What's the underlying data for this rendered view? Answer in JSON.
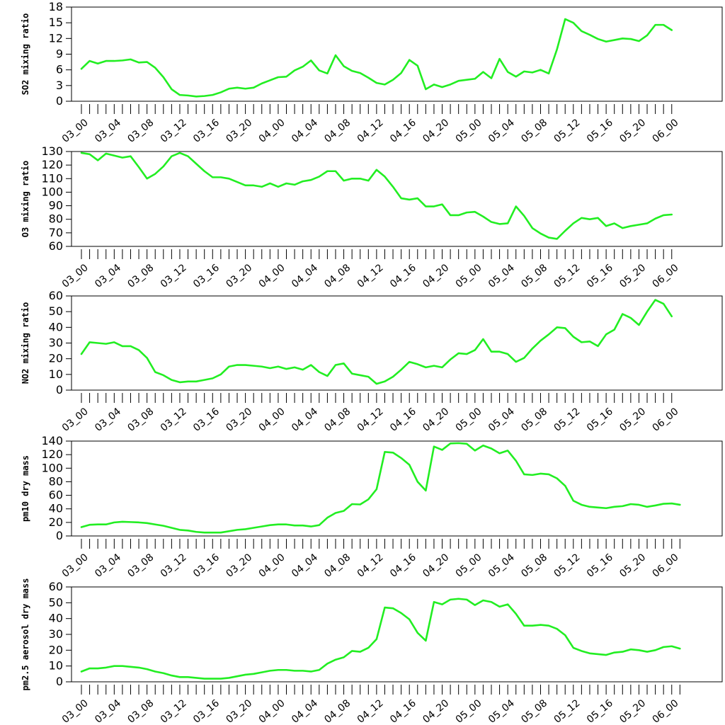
{
  "chart_data": [
    {
      "type": "line",
      "ylabel": "SO2 mixing ratio",
      "ylim": [
        0,
        18
      ],
      "yticks": [
        0,
        3,
        6,
        9,
        12,
        15,
        18
      ],
      "x_tick_labels": [
        "03_00",
        "03_04",
        "03_08",
        "03_12",
        "03_16",
        "03_20",
        "04_00",
        "04_04",
        "04_08",
        "04_12",
        "04_16",
        "04_20",
        "05_00",
        "05_04",
        "05_08",
        "05_12",
        "05_16",
        "05_20",
        "06_00"
      ],
      "line_color": "#22ee22",
      "values": [
        6.2,
        7.7,
        7.2,
        7.7,
        7.7,
        7.8,
        8.0,
        7.4,
        7.5,
        6.4,
        4.6,
        2.3,
        1.2,
        1.1,
        0.9,
        1.0,
        1.2,
        1.7,
        2.4,
        2.6,
        2.4,
        2.6,
        3.4,
        4.0,
        4.6,
        4.7,
        5.9,
        6.6,
        7.8,
        5.9,
        5.3,
        8.8,
        6.7,
        5.8,
        5.4,
        4.5,
        3.5,
        3.2,
        4.1,
        5.4,
        7.9,
        6.8,
        2.3,
        3.2,
        2.7,
        3.2,
        3.9,
        4.1,
        4.3,
        5.6,
        4.4,
        8.1,
        5.6,
        4.7,
        5.7,
        5.5,
        6.0,
        5.3,
        9.9,
        15.7,
        15.0,
        13.4,
        12.7,
        11.9,
        11.4,
        11.7,
        12.0,
        11.9,
        11.5,
        12.6,
        14.6,
        14.6,
        13.6
      ]
    },
    {
      "type": "line",
      "ylabel": "O3 mixing ratio",
      "ylim": [
        60,
        130
      ],
      "yticks": [
        60,
        70,
        80,
        90,
        100,
        110,
        120,
        130
      ],
      "x_tick_labels": [
        "03_00",
        "03_04",
        "03_08",
        "03_12",
        "03_16",
        "03_20",
        "04_00",
        "04_04",
        "04_08",
        "04_12",
        "04_16",
        "04_20",
        "05_00",
        "05_04",
        "05_08",
        "05_12",
        "05_16",
        "05_20",
        "06_00"
      ],
      "line_color": "#22ee22",
      "values": [
        129,
        128,
        123.5,
        128.5,
        127,
        125.5,
        126.5,
        118.5,
        110,
        113.5,
        119,
        126.5,
        129,
        126.5,
        121,
        115.5,
        111,
        111,
        110,
        107.5,
        105,
        105,
        104,
        106.5,
        104,
        106.5,
        105.5,
        108,
        109,
        111.5,
        115.5,
        115.5,
        108.5,
        110,
        110,
        108.5,
        116.5,
        111.5,
        104,
        95.5,
        94.5,
        95.5,
        89.5,
        89.5,
        91,
        83,
        83,
        85,
        85.5,
        82,
        78,
        76.5,
        77,
        89.5,
        82.5,
        73.5,
        69.5,
        66.5,
        65.5,
        71.5,
        77,
        81,
        80,
        81,
        75,
        77,
        73.5,
        75,
        76,
        77,
        80.5,
        83,
        83.5
      ]
    },
    {
      "type": "line",
      "ylabel": "NO2 mixing ratio",
      "ylim": [
        0,
        60
      ],
      "yticks": [
        0,
        10,
        20,
        30,
        40,
        50,
        60
      ],
      "x_tick_labels": [
        "03_00",
        "03_04",
        "03_08",
        "03_12",
        "03_16",
        "03_20",
        "04_00",
        "04_04",
        "04_08",
        "04_12",
        "04_16",
        "04_20",
        "05_00",
        "05_04",
        "05_08",
        "05_12",
        "05_16",
        "05_20",
        "06_00"
      ],
      "line_color": "#22ee22",
      "values": [
        23,
        30.5,
        30,
        29.5,
        30.5,
        28,
        28,
        25.5,
        20.5,
        11.5,
        9.5,
        6.5,
        5,
        5.5,
        5.5,
        6.5,
        7.5,
        10,
        15,
        16,
        16,
        15.5,
        15,
        14,
        15,
        13.5,
        14.5,
        13,
        16,
        11.5,
        9,
        16,
        17,
        10.5,
        9.5,
        8.5,
        4,
        5.5,
        8.5,
        13,
        18,
        16.5,
        14.5,
        15.5,
        14.5,
        19.5,
        23.5,
        23,
        25.5,
        32.5,
        24.5,
        24.5,
        23,
        18,
        20.5,
        26.5,
        31.5,
        35.5,
        40,
        39.5,
        34,
        30.5,
        31,
        28,
        35.5,
        38.5,
        48.5,
        46,
        41.5,
        50,
        57.5,
        55,
        47
      ]
    },
    {
      "type": "line",
      "ylabel": "pm10 dry mass",
      "ylim": [
        0,
        140
      ],
      "yticks": [
        0,
        20,
        40,
        60,
        80,
        100,
        120,
        140
      ],
      "x_tick_labels": [
        "03_00",
        "03_04",
        "03_08",
        "03_12",
        "03_16",
        "03_20",
        "04_00",
        "04_04",
        "04_08",
        "04_12",
        "04_16",
        "04_20",
        "05_00",
        "05_04",
        "05_08",
        "05_12",
        "05_16",
        "05_20",
        "06_00"
      ],
      "line_color": "#22ee22",
      "values": [
        13,
        16.5,
        17,
        17,
        20,
        21,
        20.5,
        20,
        19,
        17,
        15,
        12,
        9,
        8,
        6,
        5,
        5,
        5,
        7,
        9,
        10,
        12,
        14,
        16,
        17,
        17,
        15.5,
        15.5,
        14,
        16,
        27,
        34,
        37,
        47,
        46.5,
        54,
        69,
        124,
        123,
        115,
        105,
        80,
        67,
        132,
        127,
        136.5,
        137,
        136,
        126,
        133.5,
        129,
        122,
        126,
        111,
        91,
        90,
        92,
        91,
        85,
        74,
        52,
        46,
        43,
        42,
        41,
        43,
        44,
        47,
        46,
        43,
        45,
        47.5,
        48,
        46
      ]
    },
    {
      "type": "line",
      "ylabel": "pm2.5 aerosol dry mass",
      "ylim": [
        0,
        60
      ],
      "yticks": [
        0,
        10,
        20,
        30,
        40,
        50,
        60
      ],
      "x_tick_labels": [
        "03_00",
        "03_04",
        "03_08",
        "03_12",
        "03_16",
        "03_20",
        "04_00",
        "04_04",
        "04_08",
        "04_12",
        "04_16",
        "04_20",
        "05_00",
        "05_04",
        "05_08",
        "05_12",
        "05_16",
        "05_20",
        "06_00"
      ],
      "line_color": "#22ee22",
      "values": [
        6.5,
        8.5,
        8.5,
        9,
        10,
        10,
        9.5,
        9,
        8,
        6.5,
        5.5,
        4,
        3,
        3,
        2.5,
        2,
        2,
        2,
        2.5,
        3.5,
        4.5,
        5,
        6,
        7,
        7.5,
        7.5,
        7,
        7,
        6.5,
        7.5,
        11.5,
        14,
        15.5,
        19.5,
        19,
        21.5,
        27,
        47,
        46.5,
        43.5,
        39.5,
        31,
        26,
        50.5,
        49,
        52,
        52.5,
        52,
        48.5,
        51.5,
        50.5,
        47.5,
        49,
        43,
        35.5,
        35.5,
        36,
        35.5,
        33.5,
        29.5,
        21.5,
        19.5,
        18,
        17.5,
        17,
        18.5,
        19,
        20.5,
        20,
        19,
        20,
        22,
        22.5,
        21
      ]
    }
  ]
}
